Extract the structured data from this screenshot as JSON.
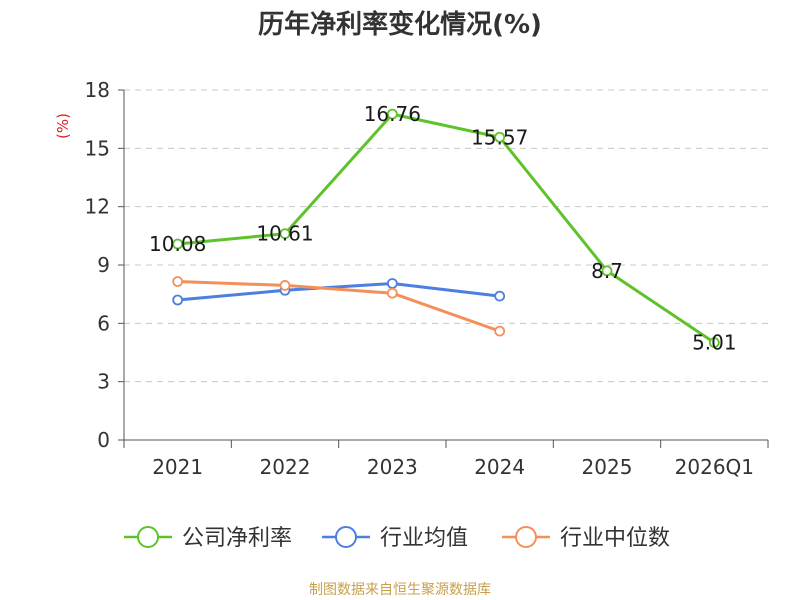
{
  "chart_data": {
    "type": "line",
    "title": "历年净利率变化情况(%)",
    "ylabel": "(%)",
    "xlabel": "",
    "categories": [
      "2021",
      "2022",
      "2023",
      "2024",
      "2025",
      "2026Q1"
    ],
    "ylim": [
      0,
      18
    ],
    "yticks": [
      0,
      3,
      6,
      9,
      12,
      15,
      18
    ],
    "grid": true,
    "legend_position": "bottom",
    "series": [
      {
        "name": "公司净利率",
        "color": "#5ec32a",
        "show_labels": true,
        "values": [
          10.08,
          10.61,
          16.76,
          15.57,
          8.7,
          5.01
        ]
      },
      {
        "name": "行业均值",
        "color": "#4d7fe0",
        "show_labels": false,
        "values": [
          7.2,
          7.7,
          8.05,
          7.4,
          null,
          null
        ]
      },
      {
        "name": "行业中位数",
        "color": "#f58f5a",
        "show_labels": false,
        "values": [
          8.15,
          7.95,
          7.55,
          5.6,
          null,
          null
        ]
      }
    ]
  },
  "footer": {
    "source": "制图数据来自恒生聚源数据库"
  }
}
